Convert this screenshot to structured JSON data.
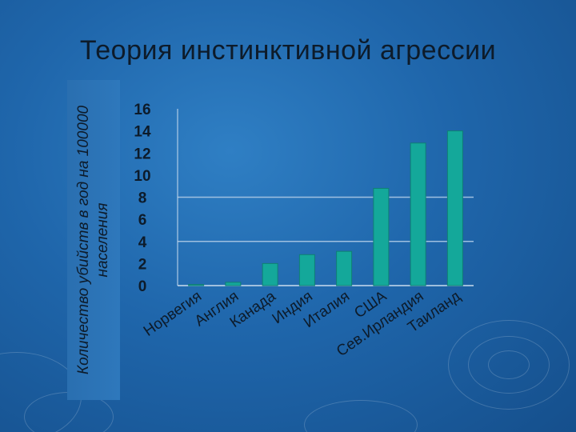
{
  "title": "Теория инстинктивной агрессии",
  "colors": {
    "bar": "#14a89a",
    "bar_edge": "#0f7f74",
    "grid": "#9fc0e0",
    "axis": "#c9dcee",
    "text": "#0d1b2a"
  },
  "chart_data": {
    "type": "bar",
    "title": "",
    "xlabel": "",
    "ylabel": "Количество убийств в год на 100000 населения",
    "ylim": [
      0,
      16
    ],
    "yticks": [
      "16",
      "14",
      "12",
      "10",
      "8",
      "6",
      "4",
      "2",
      "0"
    ],
    "grid": true,
    "categories": [
      "Норвегия",
      "Англия",
      "Канада",
      "Индия",
      "Италия",
      "США",
      "Сев.Ирландия",
      "Таиланд"
    ],
    "values": [
      0.1,
      0.3,
      2.0,
      2.8,
      3.1,
      8.8,
      12.9,
      14.0
    ]
  }
}
